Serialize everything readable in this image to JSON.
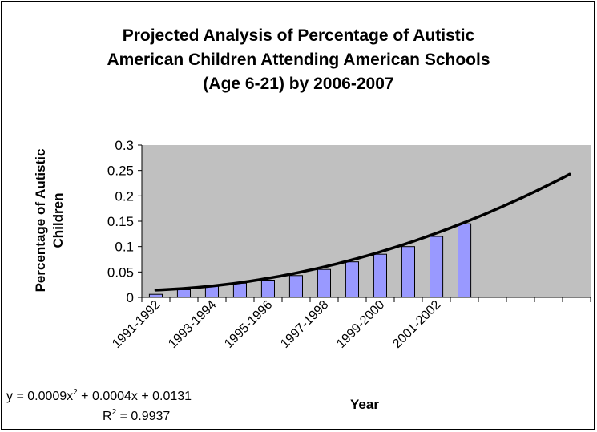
{
  "chart_data": {
    "type": "bar",
    "title_lines": [
      "Projected Analysis of Percentage of Autistic",
      "American Children Attending American Schools",
      "(Age 6-21) by 2006-2007"
    ],
    "xlabel": "Year",
    "ylabel_lines": [
      "Percentage of Autistic",
      "Children"
    ],
    "ylim": [
      0,
      0.3
    ],
    "yticks": [
      "0",
      "0.05",
      "0.1",
      "0.15",
      "0.2",
      "0.25",
      "0.3"
    ],
    "grid": false,
    "num_slots": 16,
    "x_tick_labels": [
      "1991-1992",
      "1993-1994",
      "1995-1996",
      "1997-1998",
      "1999-2000",
      "2001-2002"
    ],
    "values": [
      0.006,
      0.015,
      0.022,
      0.028,
      0.034,
      0.043,
      0.055,
      0.07,
      0.085,
      0.1,
      0.12,
      0.145
    ],
    "trendline": {
      "type": "polynomial",
      "coefficients": [
        0.0009,
        0.0004,
        0.0131
      ],
      "equation_prefix": "y = 0.0009x",
      "equation_suffix": " + 0.0004x + 0.0131",
      "r2_prefix": "R",
      "r2_suffix": " = 0.9937",
      "exponent": "2"
    },
    "colors": {
      "plot_background": "#c0c0c0",
      "bar_fill": "#9999ff",
      "bar_stroke": "#000000",
      "trendline": "#000000"
    }
  }
}
